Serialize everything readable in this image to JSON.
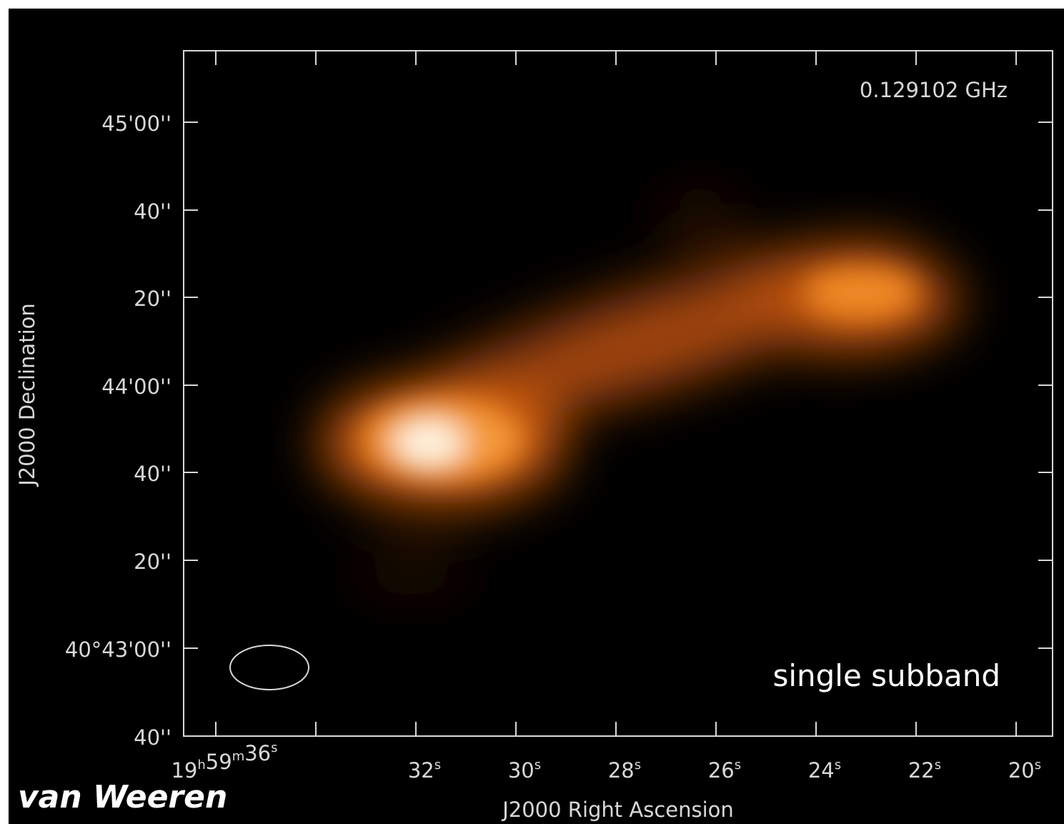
{
  "plot": {
    "frequency": "0.129102 GHz",
    "x_axis_title": "J2000 Right Ascension",
    "y_axis_title": "J2000 Declination",
    "x_tick_labels": [
      [
        {
          "n": "19",
          "u": "h"
        },
        {
          "n": "59",
          "u": "m"
        },
        {
          "n": "36",
          "u": "s"
        }
      ],
      [
        {
          "n": "32",
          "u": "s"
        }
      ],
      [
        {
          "n": "30",
          "u": "s"
        }
      ],
      [
        {
          "n": "28",
          "u": "s"
        }
      ],
      [
        {
          "n": "26",
          "u": "s"
        }
      ],
      [
        {
          "n": "24",
          "u": "s"
        }
      ],
      [
        {
          "n": "22",
          "u": "s"
        }
      ],
      [
        {
          "n": "20",
          "u": "s"
        }
      ]
    ],
    "y_tick_labels": [
      "45'00''",
      "40''",
      "20''",
      "44'00''",
      "40''",
      "20''",
      "40°43'00''",
      "40''"
    ]
  },
  "annotations": {
    "subband": "single subband",
    "author": "van Weeren"
  }
}
